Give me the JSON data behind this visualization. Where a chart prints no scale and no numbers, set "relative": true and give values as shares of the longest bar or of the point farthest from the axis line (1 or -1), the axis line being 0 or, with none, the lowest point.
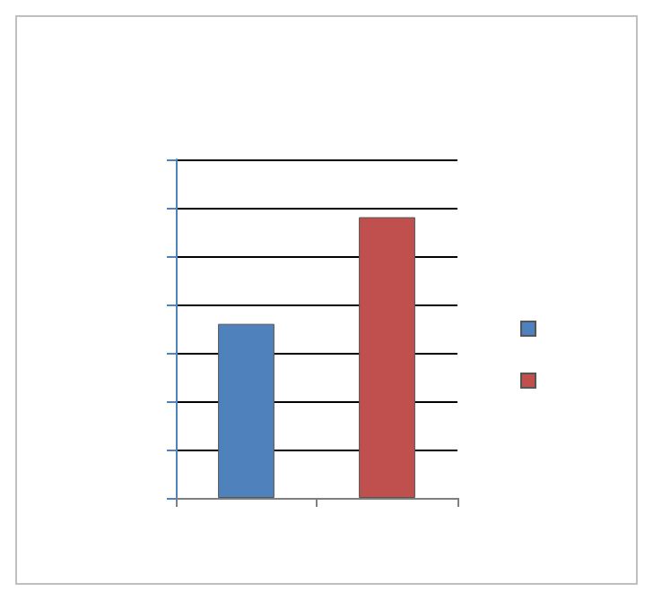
{
  "chart_data": {
    "type": "bar",
    "relative": true,
    "categories": [
      null,
      null
    ],
    "series": [
      {
        "color": "#4f81bd",
        "values": [
          0.62,
          null
        ]
      },
      {
        "color": "#c0504d",
        "values": [
          null,
          1
        ]
      }
    ],
    "stacked": true,
    "grid": "y"
  }
}
